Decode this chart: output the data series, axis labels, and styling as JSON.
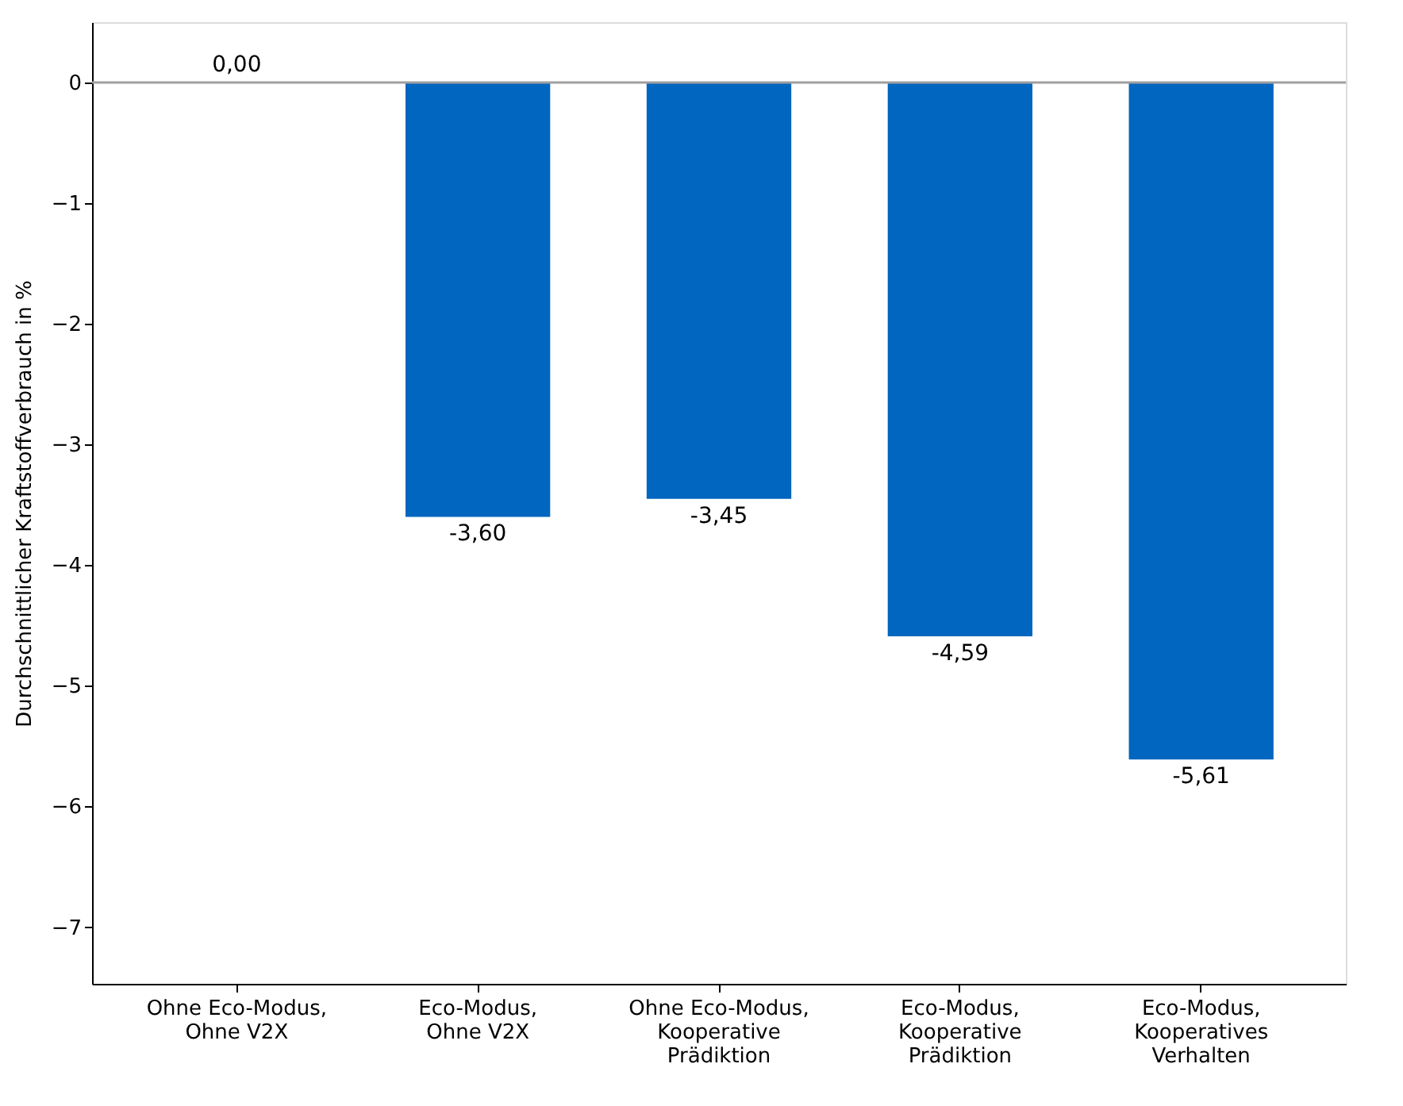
{
  "chart_data": {
    "type": "bar",
    "ylabel": "Durchschnittlicher Kraftstoffverbrauch in %",
    "categories": [
      "Ohne Eco-Modus,\nOhne V2X",
      "Eco-Modus,\nOhne V2X",
      "Ohne Eco-Modus,\nKooperative\nPrädiktion",
      "Eco-Modus,\nKooperative\nPrädiktion",
      "Eco-Modus,\nKooperatives\nVerhalten"
    ],
    "values": [
      0.0,
      -3.6,
      -3.45,
      -4.59,
      -5.61
    ],
    "value_labels": [
      "0,00",
      "-3,60",
      "-3,45",
      "-4,59",
      "-5,61"
    ],
    "color": "#0066bf",
    "ylim": [
      -7.47,
      0.5
    ],
    "yticks": [
      0,
      {
        "value": -1,
        "label": "−1"
      },
      {
        "value": -2,
        "label": "−2"
      },
      {
        "value": -3,
        "label": "−3"
      },
      {
        "value": -4,
        "label": "−4"
      },
      {
        "value": -5,
        "label": "−5"
      },
      {
        "value": -6,
        "label": "−6"
      },
      {
        "value": -7,
        "label": "−7"
      }
    ],
    "ref_lines": [
      {
        "axis": "y",
        "value": 0,
        "color": "#a0a0a0"
      }
    ],
    "grid": false
  }
}
